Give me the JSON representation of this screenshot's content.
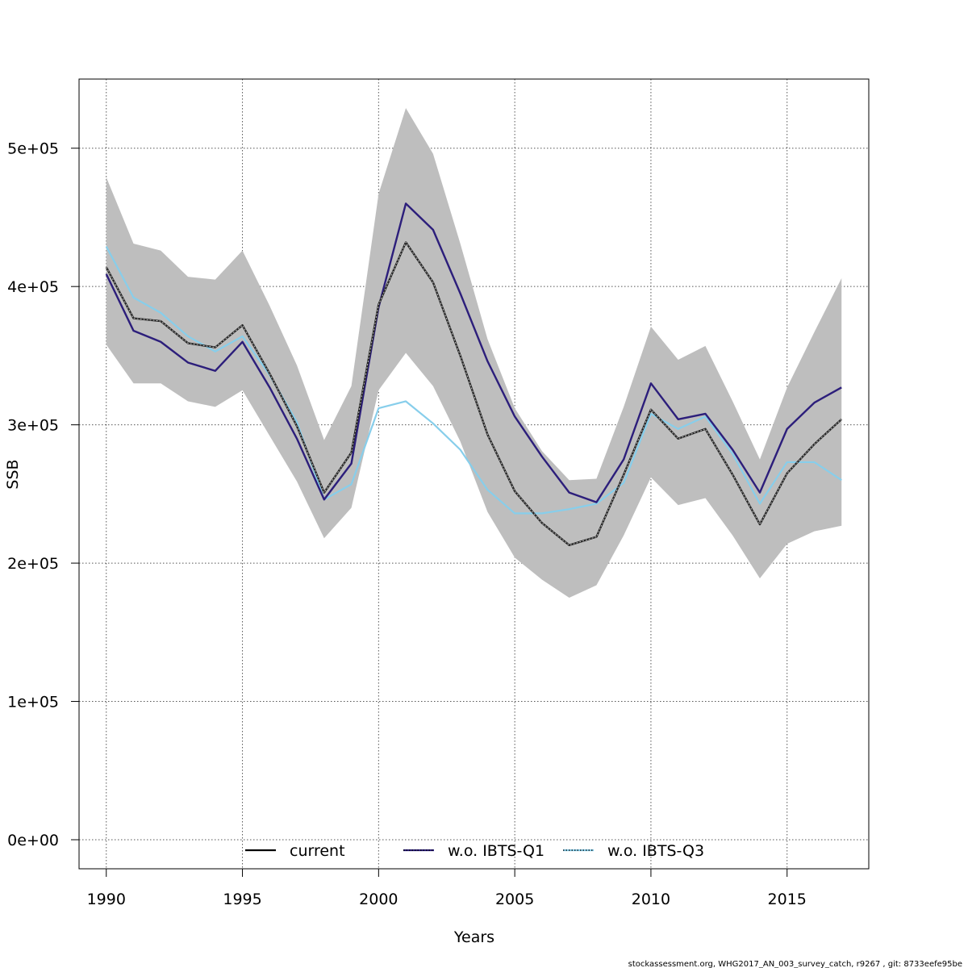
{
  "chart_data": {
    "type": "line",
    "xlabel": "Years",
    "ylabel": "SSB",
    "xlim": [
      1989,
      2018
    ],
    "ylim": [
      -21000,
      550000
    ],
    "x_ticks": [
      1990,
      1995,
      2000,
      2005,
      2010,
      2015
    ],
    "y_ticks": [
      0,
      100000,
      200000,
      300000,
      400000,
      500000
    ],
    "y_tick_labels": [
      "0e+00",
      "1e+05",
      "2e+05",
      "3e+05",
      "4e+05",
      "5e+05"
    ],
    "grid": true,
    "legend_position": "bottom",
    "x": [
      1990,
      1991,
      1992,
      1993,
      1994,
      1995,
      1996,
      1997,
      1998,
      1999,
      2000,
      2001,
      2002,
      2003,
      2004,
      2005,
      2006,
      2007,
      2008,
      2009,
      2010,
      2011,
      2012,
      2013,
      2014,
      2015,
      2016,
      2017
    ],
    "confidence_band": {
      "color": "#bebebe",
      "upper": [
        479000,
        431000,
        426000,
        407000,
        405000,
        426000,
        386000,
        343000,
        289000,
        328000,
        467000,
        529000,
        496000,
        431000,
        362000,
        312000,
        281000,
        260000,
        261000,
        313000,
        371000,
        347000,
        357000,
        317000,
        275000,
        327000,
        367000,
        406000
      ],
      "lower": [
        358000,
        330000,
        330000,
        317000,
        313000,
        325000,
        292000,
        259000,
        218000,
        240000,
        325000,
        352000,
        328000,
        288000,
        237000,
        204000,
        188000,
        175000,
        184000,
        220000,
        262000,
        242000,
        247000,
        220000,
        189000,
        214000,
        223000,
        227000
      ]
    },
    "series": [
      {
        "name": "current",
        "color": "#000000",
        "style": "solid",
        "values": [
          414000,
          377000,
          375000,
          359000,
          356000,
          372000,
          337000,
          299000,
          251000,
          280000,
          387000,
          432000,
          403000,
          350000,
          293000,
          252000,
          229000,
          213000,
          219000,
          264000,
          311000,
          290000,
          297000,
          264000,
          228000,
          265000,
          286000,
          304000
        ]
      },
      {
        "name": "w.o. IBTS-Q1",
        "color": "#2c1e7b",
        "style": "solid",
        "values": [
          409000,
          368000,
          360000,
          345000,
          339000,
          360000,
          327000,
          290000,
          246000,
          272000,
          385000,
          460000,
          441000,
          395000,
          346000,
          306000,
          277000,
          251000,
          244000,
          275000,
          330000,
          304000,
          308000,
          282000,
          251000,
          297000,
          316000,
          327000
        ]
      },
      {
        "name": "w.o. IBTS-Q3",
        "color": "#87ceeb",
        "style": "solid",
        "values": [
          429000,
          392000,
          381000,
          364000,
          353000,
          364000,
          336000,
          302000,
          246000,
          257000,
          312000,
          317000,
          301000,
          282000,
          253000,
          236000,
          236000,
          239000,
          243000,
          258000,
          308000,
          297000,
          306000,
          279000,
          243000,
          273000,
          273000,
          260000
        ]
      }
    ]
  },
  "footer": {
    "note": "stockassessment.org, WHG2017_AN_003_survey_catch, r9267 , git: 8733eefe95be"
  }
}
